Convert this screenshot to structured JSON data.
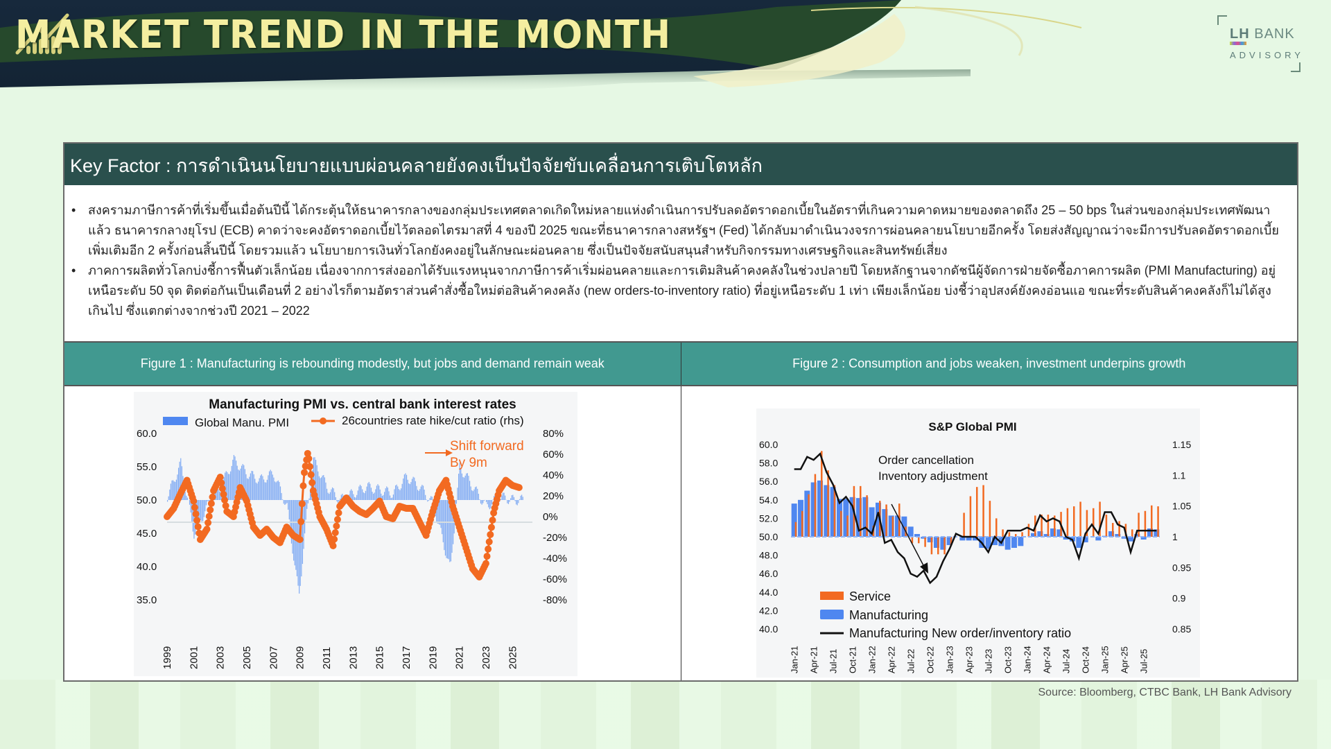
{
  "header": {
    "title": "MARKET TREND IN THE MONTH",
    "logo": {
      "brand": "LH",
      "brand_rest": "BANK",
      "sub": "ADVISORY"
    }
  },
  "key_factor": {
    "heading": "Key Factor : การดำเนินนโยบายแบบผ่อนคลายยังคงเป็นปัจจัยขับเคลื่อนการเติบโตหลัก",
    "bullets": [
      "สงครามภาษีการค้าที่เริ่มขึ้นเมื่อต้นปีนี้ ได้กระตุ้นให้ธนาคารกลางของกลุ่มประเทศตลาดเกิดใหม่หลายแห่งดำเนินการปรับลดอัตราดอกเบี้ยในอัตราที่เกินความคาดหมายของตลาดถึง 25 – 50 bps ในส่วนของกลุ่มประเทศพัฒนาแล้ว ธนาคารกลางยุโรป (ECB) คาดว่าจะคงอัตราดอกเบี้ยไว้ตลอดไตรมาสที่ 4 ของปี 2025 ขณะที่ธนาคารกลางสหรัฐฯ (Fed) ได้กลับมาดำเนินวงจรการผ่อนคลายนโยบายอีกครั้ง โดยส่งสัญญาณว่าจะมีการปรับลดอัตราดอกเบี้ยเพิ่มเติมอีก 2 ครั้งก่อนสิ้นปีนี้ โดยรวมแล้ว นโยบายการเงินทั่วโลกยังคงอยู่ในลักษณะผ่อนคลาย ซึ่งเป็นปัจจัยสนับสนุนสำหรับกิจกรรมทางเศรษฐกิจและสินทรัพย์เสี่ยง",
      "ภาคการผลิตทั่วโลกบ่งชี้การฟื้นตัวเล็กน้อย เนื่องจากการส่งออกได้รับแรงหนุนจากภาษีการค้าเริ่มผ่อนคลายและการเติมสินค้าคงคลังในช่วงปลายปี โดยหลักฐานจากดัชนีผู้จัดการฝ่ายจัดซื้อภาคการผลิต (PMI Manufacturing) อยู่เหนือระดับ 50 จุด ติดต่อกันเป็นเดือนที่ 2 อย่างไรก็ตามอัตราส่วนคำสั่งซื้อใหม่ต่อสินค้าคงคลัง (new orders-to-inventory ratio) ที่อยู่เหนือระดับ 1 เท่า เพียงเล็กน้อย บ่งชี้ว่าอุปสงค์ยังคงอ่อนแอ ขณะที่ระดับสินค้าคงคลังก็ไม่ได้สูงเกินไป ซึ่งแตกต่างจากช่วงปี 2021 – 2022"
    ]
  },
  "figures": [
    {
      "label": "Figure 1 : Manufacturing is rebounding modestly, but jobs and demand remain weak"
    },
    {
      "label": "Figure 2 : Consumption and jobs weaken, investment underpins growth"
    }
  ],
  "source": "Source: Bloomberg, CTBC Bank, LH Bank Advisory",
  "colors": {
    "header_dark": "#2a504d",
    "figure_header": "#419990",
    "title_gold": "#f4eea0",
    "orange": "#f26a21",
    "blue": "#4f87f0"
  },
  "chart_data": [
    {
      "type": "bar",
      "title": "Manufacturing PMI vs. central bank interest rates",
      "legend": [
        "Global Manu. PMI",
        "26countries  rate hike/cut ratio (rhs)"
      ],
      "annotation": "Shift forward By 9m",
      "xlabel": "",
      "ylabel": "",
      "y_ticks": [
        "60.0",
        "55.0",
        "50.0",
        "45.0",
        "40.0",
        "35.0"
      ],
      "y2_ticks": [
        "80%",
        "60%",
        "40%",
        "20%",
        "0%",
        "-20%",
        "-40%",
        "-60%",
        "-80%"
      ],
      "ylim": [
        35,
        60
      ],
      "y2lim": [
        -80,
        80
      ],
      "x_ticks": [
        "1999",
        "2001",
        "2003",
        "2005",
        "2007",
        "2009",
        "2011",
        "2013",
        "2015",
        "2017",
        "2019",
        "2021",
        "2023",
        "2025"
      ],
      "series": [
        {
          "name": "Global Manu. PMI",
          "type": "bar",
          "baseline": 50,
          "x": [
            1999,
            2000,
            2001,
            2002,
            2003,
            2004,
            2005,
            2006,
            2007,
            2008,
            2008.9,
            2009.5,
            2010,
            2011,
            2012,
            2013,
            2014,
            2015,
            2016,
            2017,
            2018,
            2019,
            2020.3,
            2021,
            2022,
            2023,
            2024,
            2025
          ],
          "values": [
            50.5,
            55.5,
            45,
            49,
            52,
            56,
            54,
            53,
            54,
            49,
            35.5,
            48,
            56,
            52,
            50,
            51,
            52,
            51.5,
            51,
            53.5,
            52,
            49.5,
            39.5,
            55,
            52,
            49,
            50.5,
            50
          ]
        },
        {
          "name": "26countries  rate hike/cut ratio (rhs)",
          "type": "line",
          "axis": "rhs",
          "x": [
            1999,
            1999.5,
            2000,
            2000.5,
            2001,
            2001.5,
            2002,
            2002.5,
            2003,
            2003.5,
            2004,
            2004.5,
            2005,
            2005.5,
            2006,
            2006.5,
            2007,
            2007.5,
            2008,
            2008.5,
            2009,
            2009.3,
            2009.6,
            2010,
            2010.5,
            2011,
            2011.5,
            2012,
            2012.5,
            2013,
            2013.5,
            2014,
            2014.5,
            2015,
            2015.5,
            2016,
            2016.5,
            2017,
            2017.5,
            2018,
            2018.5,
            2019,
            2019.5,
            2020,
            2020.5,
            2021,
            2021.5,
            2022,
            2022.5,
            2023,
            2023.3,
            2023.6,
            2024,
            2024.5,
            2025,
            2025.5
          ],
          "values": [
            0,
            8,
            22,
            35,
            15,
            -22,
            -12,
            25,
            38,
            5,
            0,
            28,
            15,
            -10,
            -18,
            -12,
            -20,
            -25,
            -10,
            -18,
            -22,
            40,
            62,
            25,
            0,
            -12,
            -28,
            10,
            18,
            10,
            5,
            2,
            8,
            15,
            0,
            -2,
            10,
            8,
            8,
            -5,
            -18,
            5,
            25,
            35,
            10,
            -10,
            -30,
            -50,
            -58,
            -45,
            -20,
            5,
            25,
            35,
            30,
            28
          ]
        }
      ]
    },
    {
      "type": "bar",
      "title": "S&P Global PMI",
      "annotation": "Order cancellation Inventory adjustment",
      "legend": [
        "Service",
        "Manufacturing",
        "Manufacturing New order/inventory ratio"
      ],
      "y_ticks": [
        "60.0",
        "58.0",
        "56.0",
        "54.0",
        "52.0",
        "50.0",
        "48.0",
        "46.0",
        "44.0",
        "42.0",
        "40.0"
      ],
      "y2_ticks": [
        "1.15",
        "1.1",
        "1.05",
        "1",
        "0.95",
        "0.9",
        "0.85"
      ],
      "ylim": [
        40,
        60
      ],
      "y2lim": [
        0.85,
        1.15
      ],
      "categories": [
        "Jan-21",
        "Feb-21",
        "Mar-21",
        "Apr-21",
        "May-21",
        "Jun-21",
        "Jul-21",
        "Aug-21",
        "Sep-21",
        "Oct-21",
        "Nov-21",
        "Dec-21",
        "Jan-22",
        "Feb-22",
        "Mar-22",
        "Apr-22",
        "May-22",
        "Jun-22",
        "Jul-22",
        "Aug-22",
        "Sep-22",
        "Oct-22",
        "Nov-22",
        "Dec-22",
        "Jan-23",
        "Feb-23",
        "Mar-23",
        "Apr-23",
        "May-23",
        "Jun-23",
        "Jul-23",
        "Aug-23",
        "Sep-23",
        "Oct-23",
        "Nov-23",
        "Dec-23",
        "Jan-24",
        "Feb-24",
        "Mar-24",
        "Apr-24",
        "May-24",
        "Jun-24",
        "Jul-24",
        "Aug-24",
        "Sep-24",
        "Oct-24",
        "Nov-24",
        "Dec-24",
        "Jan-25",
        "Feb-25",
        "Mar-25",
        "Apr-25",
        "May-25",
        "Jun-25",
        "Jul-25",
        "Aug-25",
        "Sep-25"
      ],
      "x_tick_labels": [
        "Jan-21",
        "Apr-21",
        "Jul-21",
        "Oct-21",
        "Jan-22",
        "Apr-22",
        "Jul-22",
        "Oct-22",
        "Jan-23",
        "Apr-23",
        "Jul-23",
        "Oct-23",
        "Jan-24",
        "Apr-24",
        "Jul-24",
        "Oct-24",
        "Jan-25",
        "Apr-25",
        "Jul-25"
      ],
      "series": [
        {
          "name": "Service",
          "type": "bar",
          "color": "#f26a21",
          "values": [
            51.6,
            52.8,
            54.6,
            56.8,
            59.3,
            57.2,
            55.6,
            52.8,
            52.3,
            55.5,
            55.5,
            54.5,
            51.2,
            53.9,
            53.5,
            52.2,
            53.6,
            51.1,
            49.3,
            49.3,
            48.9,
            48.1,
            48.1,
            48.1,
            49.0,
            50.0,
            52.6,
            54.4,
            55.4,
            55.6,
            53.9,
            52.0,
            50.8,
            50.5,
            50.3,
            50.5,
            51.4,
            52.3,
            52.4,
            52.4,
            52.3,
            52.7,
            53.1,
            53.3,
            53.8,
            52.9,
            53.1,
            53.8,
            52.4,
            51.5,
            51.7,
            51.4,
            50.8,
            52.6,
            52.8,
            53.4,
            53.3
          ]
        },
        {
          "name": "Manufacturing",
          "type": "bar",
          "color": "#4f87f0",
          "values": [
            53.6,
            54.0,
            55.0,
            55.9,
            56.1,
            55.6,
            55.4,
            54.1,
            54.1,
            54.3,
            54.2,
            54.3,
            53.2,
            53.7,
            53.0,
            52.3,
            52.3,
            52.2,
            51.1,
            50.3,
            49.8,
            49.4,
            48.8,
            48.6,
            49.1,
            50.0,
            49.6,
            49.6,
            49.6,
            48.8,
            48.7,
            49.1,
            49.0,
            48.6,
            48.8,
            49.0,
            50.0,
            50.4,
            50.6,
            50.3,
            50.9,
            50.8,
            49.7,
            49.5,
            48.8,
            49.4,
            50.0,
            49.6,
            50.1,
            50.6,
            50.3,
            49.8,
            49.5,
            50.3,
            49.7,
            50.9,
            50.8
          ]
        },
        {
          "name": "Manufacturing New order/inventory ratio",
          "type": "line",
          "axis": "rhs",
          "color": "#000000",
          "values": [
            1.11,
            1.11,
            1.13,
            1.125,
            1.135,
            1.105,
            1.085,
            1.055,
            1.065,
            1.05,
            1.01,
            1.015,
            1.005,
            1.04,
            0.99,
            0.995,
            0.975,
            0.965,
            0.94,
            0.935,
            0.945,
            0.925,
            0.935,
            0.96,
            0.98,
            1.005,
            1.0,
            1.0,
            1.0,
            0.99,
            0.975,
            1.0,
            0.99,
            1.01,
            1.01,
            1.01,
            1.015,
            1.01,
            1.035,
            1.025,
            1.03,
            1.025,
            1.0,
            0.995,
            0.965,
            1.005,
            1.02,
            1.005,
            1.04,
            1.04,
            1.02,
            1.015,
            0.975,
            1.01,
            1.01,
            1.01,
            1.01
          ]
        }
      ]
    }
  ]
}
